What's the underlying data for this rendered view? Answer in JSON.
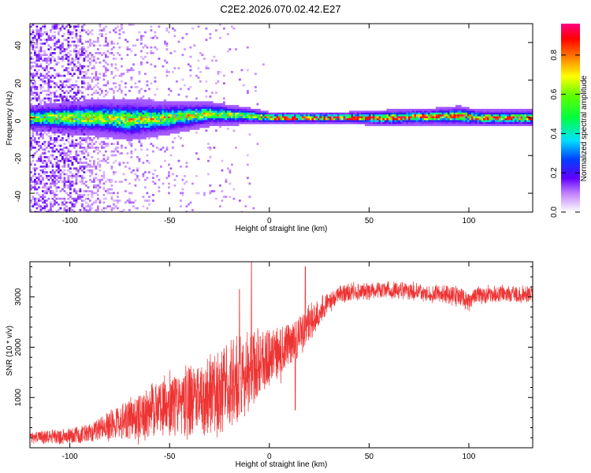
{
  "figure": {
    "title": "C2E2.2026.070.02.42.E27"
  },
  "chart_data": [
    {
      "type": "heatmap",
      "name": "spectrogram",
      "xlabel": "Height of straight line (km)",
      "ylabel": "Frequency (Hz)",
      "xlim": [
        -120,
        132
      ],
      "ylim": [
        -50,
        50
      ],
      "xticks": [
        -100,
        -50,
        0,
        50,
        100
      ],
      "yticks": [
        -40,
        -20,
        0,
        20,
        40
      ],
      "colorbar": {
        "label": "Normalized spectral amplitude",
        "range": [
          0,
          0.96
        ],
        "ticks": [
          0.0,
          0.2,
          0.4,
          0.6,
          0.8
        ]
      },
      "description_series": {
        "x": [
          -120,
          -100,
          -85,
          -70,
          -50,
          -30,
          -10,
          0,
          20,
          40,
          60,
          80,
          95,
          105,
          132
        ],
        "ridge_center_hz": [
          0,
          0,
          0,
          -1,
          0,
          2,
          1,
          0,
          0,
          0,
          0,
          0.5,
          1,
          0,
          0
        ],
        "ridge_half_width_hz": [
          3,
          4,
          4.5,
          5,
          4,
          3,
          2,
          1.5,
          1.5,
          1.5,
          2,
          2,
          2.5,
          2,
          2
        ],
        "noise_level": [
          0.35,
          0.3,
          0.2,
          0.1,
          0.05,
          0.03,
          0.02,
          0.0,
          0.0,
          0.0,
          0.0,
          0.0,
          0.0,
          0.0,
          0.0
        ]
      }
    },
    {
      "type": "line",
      "name": "snr",
      "xlabel": "Height of straight line (km)",
      "ylabel": "SNR (10 * v/v)",
      "xlim": [
        -120,
        132
      ],
      "ylim": [
        0,
        3700
      ],
      "xticks": [
        -100,
        -50,
        0,
        50,
        100
      ],
      "yticks": [
        1000,
        2000,
        3000
      ],
      "color": "#ee3333",
      "envelope": {
        "x": [
          -120,
          -105,
          -95,
          -90,
          -85,
          -80,
          -75,
          -70,
          -65,
          -60,
          -55,
          -50,
          -45,
          -40,
          -35,
          -30,
          -25,
          -20,
          -15,
          -10,
          -5,
          0,
          5,
          10,
          15,
          20,
          25,
          30,
          35,
          40,
          50,
          60,
          70,
          80,
          90,
          95,
          100,
          105,
          110,
          120,
          132
        ],
        "mean": [
          200,
          220,
          260,
          300,
          380,
          460,
          520,
          580,
          640,
          720,
          760,
          800,
          880,
          940,
          1000,
          1080,
          1150,
          1250,
          1380,
          1500,
          1700,
          1800,
          1900,
          2050,
          2250,
          2450,
          2700,
          2900,
          3050,
          3100,
          3120,
          3150,
          3120,
          3080,
          3050,
          3000,
          2900,
          3050,
          3050,
          3050,
          3050
        ],
        "spread": [
          120,
          150,
          180,
          200,
          250,
          300,
          380,
          450,
          500,
          550,
          600,
          650,
          700,
          750,
          800,
          850,
          900,
          900,
          950,
          900,
          700,
          600,
          550,
          500,
          450,
          400,
          300,
          200,
          180,
          180,
          180,
          180,
          180,
          180,
          200,
          200,
          200,
          180,
          180,
          180,
          180
        ]
      },
      "notable_points": [
        {
          "x": -15,
          "y": 3150
        },
        {
          "x": -9,
          "y": 3700
        },
        {
          "x": 13,
          "y": 750
        },
        {
          "x": 18,
          "y": 3600
        }
      ]
    }
  ]
}
